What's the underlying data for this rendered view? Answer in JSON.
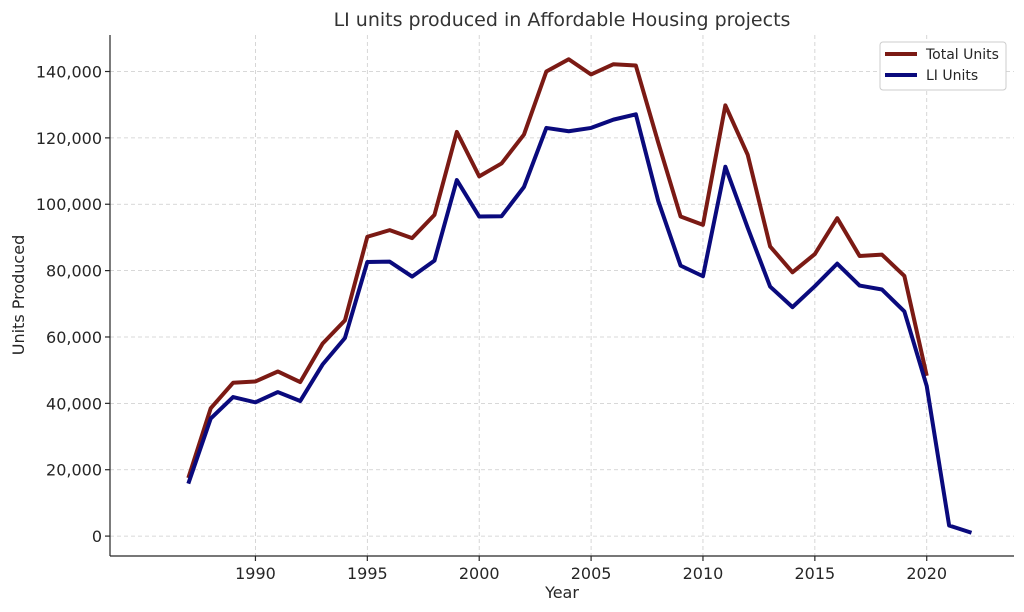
{
  "chart_data": {
    "type": "line",
    "title": "LI units produced in Affordable Housing projects",
    "xlabel": "Year",
    "ylabel": "Units Produced",
    "xlim": [
      1983.5,
      2023.9
    ],
    "ylim": [
      -6000,
      151000
    ],
    "xticks": [
      1990,
      1995,
      2000,
      2005,
      2010,
      2015,
      2020
    ],
    "xtick_labels": [
      "1990",
      "1995",
      "2000",
      "2005",
      "2010",
      "2015",
      "2020"
    ],
    "yticks": [
      0,
      20000,
      40000,
      60000,
      80000,
      100000,
      120000,
      140000
    ],
    "ytick_labels": [
      "0",
      "20,000",
      "40,000",
      "60,000",
      "80,000",
      "100,000",
      "120,000",
      "140,000"
    ],
    "grid": true,
    "legend_position": "top-right",
    "x": [
      1987,
      1988,
      1989,
      1990,
      1991,
      1992,
      1993,
      1994,
      1995,
      1996,
      1997,
      1998,
      1999,
      2000,
      2001,
      2002,
      2003,
      2004,
      2005,
      2006,
      2007,
      2008,
      2009,
      2010,
      2011,
      2012,
      2013,
      2014,
      2015,
      2016,
      2017,
      2018,
      2019,
      2020,
      2021,
      2022
    ],
    "series": [
      {
        "name": "Total Units",
        "color": "#7b1a14",
        "x": [
          1987,
          1988,
          1989,
          1990,
          1991,
          1992,
          1993,
          1994,
          1995,
          1996,
          1997,
          1998,
          1999,
          2000,
          2001,
          2002,
          2003,
          2004,
          2005,
          2006,
          2007,
          2008,
          2009,
          2010,
          2011,
          2012,
          2013,
          2014,
          2015,
          2016,
          2017,
          2018,
          2019,
          2020
        ],
        "values": [
          17500,
          38500,
          46200,
          46600,
          49600,
          46400,
          58000,
          65000,
          90200,
          92200,
          89800,
          96800,
          121800,
          108400,
          112300,
          121000,
          140000,
          143700,
          139100,
          142200,
          141800,
          118600,
          96300,
          93800,
          129800,
          114900,
          87300,
          79500,
          85000,
          95800,
          84400,
          84800,
          78400,
          48300
        ]
      },
      {
        "name": "LI Units",
        "color": "#0a0a7d",
        "x": [
          1987,
          1988,
          1989,
          1990,
          1991,
          1992,
          1993,
          1994,
          1995,
          1996,
          1997,
          1998,
          1999,
          2000,
          2001,
          2002,
          2003,
          2004,
          2005,
          2006,
          2007,
          2008,
          2009,
          2010,
          2011,
          2012,
          2013,
          2014,
          2015,
          2016,
          2017,
          2018,
          2019,
          2020,
          2021,
          2022
        ],
        "values": [
          15800,
          35400,
          41900,
          40300,
          43400,
          40700,
          51700,
          59700,
          82600,
          82700,
          78200,
          83000,
          107300,
          96300,
          96400,
          105200,
          123000,
          122000,
          123000,
          125500,
          127100,
          101000,
          81500,
          78300,
          111300,
          92900,
          75200,
          69000,
          75300,
          82100,
          75500,
          74300,
          67700,
          45200,
          3200,
          1000
        ]
      }
    ]
  }
}
